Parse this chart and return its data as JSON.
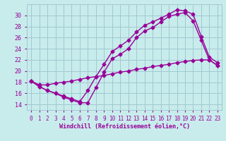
{
  "xlabel": "Windchill (Refroidissement éolien,°C)",
  "background_color": "#c8ecec",
  "grid_color": "#a0c8d0",
  "line_color": "#990099",
  "xlim": [
    -0.5,
    23.5
  ],
  "ylim": [
    13.0,
    32.0
  ],
  "xticks": [
    0,
    1,
    2,
    3,
    4,
    5,
    6,
    7,
    8,
    9,
    10,
    11,
    12,
    13,
    14,
    15,
    16,
    17,
    18,
    19,
    20,
    21,
    22,
    23
  ],
  "yticks": [
    14,
    16,
    18,
    20,
    22,
    24,
    26,
    28,
    30
  ],
  "line1_x": [
    0,
    1,
    2,
    3,
    4,
    5,
    6,
    7,
    8,
    9,
    10,
    11,
    12,
    13,
    14,
    15,
    16,
    17,
    18,
    19,
    20,
    21,
    22,
    23
  ],
  "line1_y": [
    18.2,
    17.2,
    16.5,
    16.0,
    15.3,
    14.8,
    14.3,
    14.3,
    17.0,
    19.8,
    22.2,
    23.0,
    24.0,
    26.0,
    27.2,
    27.8,
    28.8,
    29.8,
    30.2,
    30.5,
    29.0,
    25.5,
    22.0,
    21.0
  ],
  "line2_x": [
    0,
    1,
    2,
    3,
    4,
    5,
    6,
    7,
    8,
    9,
    10,
    11,
    12,
    13,
    14,
    15,
    16,
    17,
    18,
    19,
    20,
    21,
    22,
    23
  ],
  "line2_y": [
    18.2,
    17.2,
    16.5,
    16.0,
    15.5,
    15.0,
    14.5,
    16.5,
    19.0,
    21.2,
    23.5,
    24.5,
    25.5,
    27.0,
    28.2,
    28.8,
    29.5,
    30.2,
    31.0,
    30.8,
    30.2,
    26.2,
    22.5,
    21.5
  ],
  "line3_x": [
    0,
    1,
    2,
    3,
    4,
    5,
    6,
    7,
    8,
    9,
    10,
    11,
    12,
    13,
    14,
    15,
    16,
    17,
    18,
    19,
    20,
    21,
    22,
    23
  ],
  "line3_y": [
    18.2,
    17.5,
    17.5,
    17.8,
    18.0,
    18.2,
    18.5,
    18.8,
    19.0,
    19.2,
    19.5,
    19.8,
    20.0,
    20.3,
    20.5,
    20.8,
    21.0,
    21.2,
    21.5,
    21.7,
    21.9,
    22.0,
    22.0,
    21.0
  ],
  "marker": "D",
  "markersize": 2.5,
  "linewidth": 1.0,
  "tick_fontsize": 5.5,
  "xlabel_fontsize": 6.0
}
